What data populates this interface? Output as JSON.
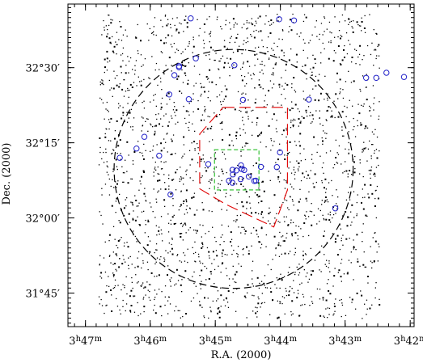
{
  "chart_data": {
    "type": "scatter",
    "xlabel": "R.A. (2000)",
    "ylabel": "Dec. (2000)",
    "x_ticks": [
      {
        "h": "3",
        "m": "47",
        "value": 3.7833
      },
      {
        "h": "3",
        "m": "46",
        "value": 3.7667
      },
      {
        "h": "3",
        "m": "45",
        "value": 3.75
      },
      {
        "h": "3",
        "m": "44",
        "value": 3.7333
      },
      {
        "h": "3",
        "m": "43",
        "value": 3.7167
      },
      {
        "h": "3",
        "m": "42",
        "value": 3.7
      }
    ],
    "y_ticks": [
      {
        "label": "32°30′",
        "value": 32.5
      },
      {
        "label": "32°15′",
        "value": 32.25
      },
      {
        "label": "32°00′",
        "value": 32.0
      },
      {
        "label": "31°45′",
        "value": 31.75
      }
    ],
    "xlim_ra_hours": [
      3.7878,
      3.699
    ],
    "ylim_dec_deg": [
      31.6383,
      32.7117
    ],
    "reversed_x": true,
    "grid": false,
    "field_star_count": 2200,
    "field_star_color": "#000000",
    "marked_sources": {
      "color": "#2020c8",
      "marker": "circle",
      "points": [
        [
          3.7563,
          32.664
        ],
        [
          3.7336,
          32.661
        ],
        [
          3.7298,
          32.657
        ],
        [
          3.755,
          32.531
        ],
        [
          3.7593,
          32.505
        ],
        [
          3.7593,
          32.501
        ],
        [
          3.7451,
          32.508
        ],
        [
          3.7605,
          32.475
        ],
        [
          3.7016,
          32.469
        ],
        [
          3.7087,
          32.466
        ],
        [
          3.7113,
          32.466
        ],
        [
          3.7061,
          32.483
        ],
        [
          3.726,
          32.394
        ],
        [
          3.7618,
          32.411
        ],
        [
          3.7429,
          32.393
        ],
        [
          3.7682,
          32.27
        ],
        [
          3.7568,
          32.395
        ],
        [
          3.7702,
          32.231
        ],
        [
          3.7644,
          32.207
        ],
        [
          3.7745,
          32.2
        ],
        [
          3.7334,
          32.218
        ],
        [
          3.7518,
          32.179
        ],
        [
          3.7434,
          32.175
        ],
        [
          3.7383,
          32.17
        ],
        [
          3.7432,
          32.163
        ],
        [
          3.7426,
          32.159
        ],
        [
          3.7446,
          32.158
        ],
        [
          3.7456,
          32.16
        ],
        [
          3.7414,
          32.138
        ],
        [
          3.7455,
          32.145
        ],
        [
          3.7435,
          32.129
        ],
        [
          3.7465,
          32.124
        ],
        [
          3.7456,
          32.117
        ],
        [
          3.74,
          32.123
        ],
        [
          3.7396,
          32.124
        ],
        [
          3.7342,
          32.169
        ],
        [
          3.7615,
          32.078
        ],
        [
          3.7192,
          32.032
        ]
      ]
    },
    "overlays": {
      "circle": {
        "label": "dashed circle",
        "color": "#000000",
        "center": [
          3.7453,
          32.163
        ],
        "radius_deg": 0.3975,
        "style": "long-dash"
      },
      "polygon": {
        "label": "red outline",
        "color": "#e00000",
        "vertices": [
          [
            3.748,
            32.368
          ],
          [
            3.7315,
            32.368
          ],
          [
            3.7315,
            32.093
          ],
          [
            3.735,
            31.97
          ],
          [
            3.7473,
            32.045
          ],
          [
            3.754,
            32.097
          ],
          [
            3.754,
            32.279
          ],
          [
            3.748,
            32.368
          ]
        ],
        "style": "long-dash"
      },
      "square": {
        "label": "green box",
        "color": "#22bb22",
        "corners": [
          [
            3.7502,
            32.227
          ],
          [
            3.7388,
            32.093
          ]
        ],
        "style": "dash"
      }
    }
  }
}
